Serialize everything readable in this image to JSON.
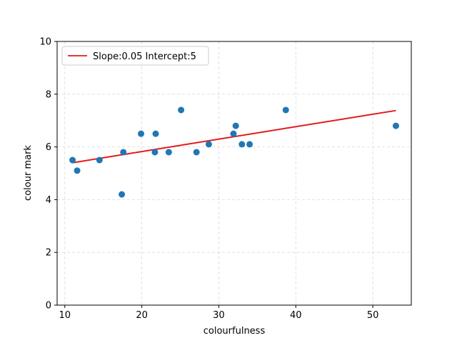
{
  "chart_data": {
    "type": "scatter",
    "title": "",
    "xlabel": "colourfulness",
    "ylabel": "colour mark",
    "xlim": [
      9,
      55
    ],
    "ylim": [
      0,
      10
    ],
    "xticks": [
      10,
      20,
      30,
      40,
      50
    ],
    "yticks": [
      0,
      2,
      4,
      6,
      8,
      10
    ],
    "grid": true,
    "legend_position": "top-left",
    "point_color": "#1f77b4",
    "line_color": "#e41a1c",
    "points": [
      {
        "x": 11.0,
        "y": 5.5
      },
      {
        "x": 11.6,
        "y": 5.1
      },
      {
        "x": 14.5,
        "y": 5.5
      },
      {
        "x": 17.4,
        "y": 4.2
      },
      {
        "x": 17.6,
        "y": 5.8
      },
      {
        "x": 19.9,
        "y": 6.5
      },
      {
        "x": 21.7,
        "y": 5.8
      },
      {
        "x": 21.8,
        "y": 6.5
      },
      {
        "x": 23.5,
        "y": 5.8
      },
      {
        "x": 25.1,
        "y": 7.4
      },
      {
        "x": 27.1,
        "y": 5.8
      },
      {
        "x": 28.7,
        "y": 6.1
      },
      {
        "x": 31.9,
        "y": 6.5
      },
      {
        "x": 32.2,
        "y": 6.8
      },
      {
        "x": 33.0,
        "y": 6.1
      },
      {
        "x": 34.0,
        "y": 6.1
      },
      {
        "x": 38.7,
        "y": 7.4
      },
      {
        "x": 53.0,
        "y": 6.8
      }
    ],
    "fit_line": {
      "name": "Slope:0.05 Intercept:5",
      "x": [
        11.0,
        53.0
      ],
      "y": [
        5.4,
        7.38
      ]
    }
  }
}
